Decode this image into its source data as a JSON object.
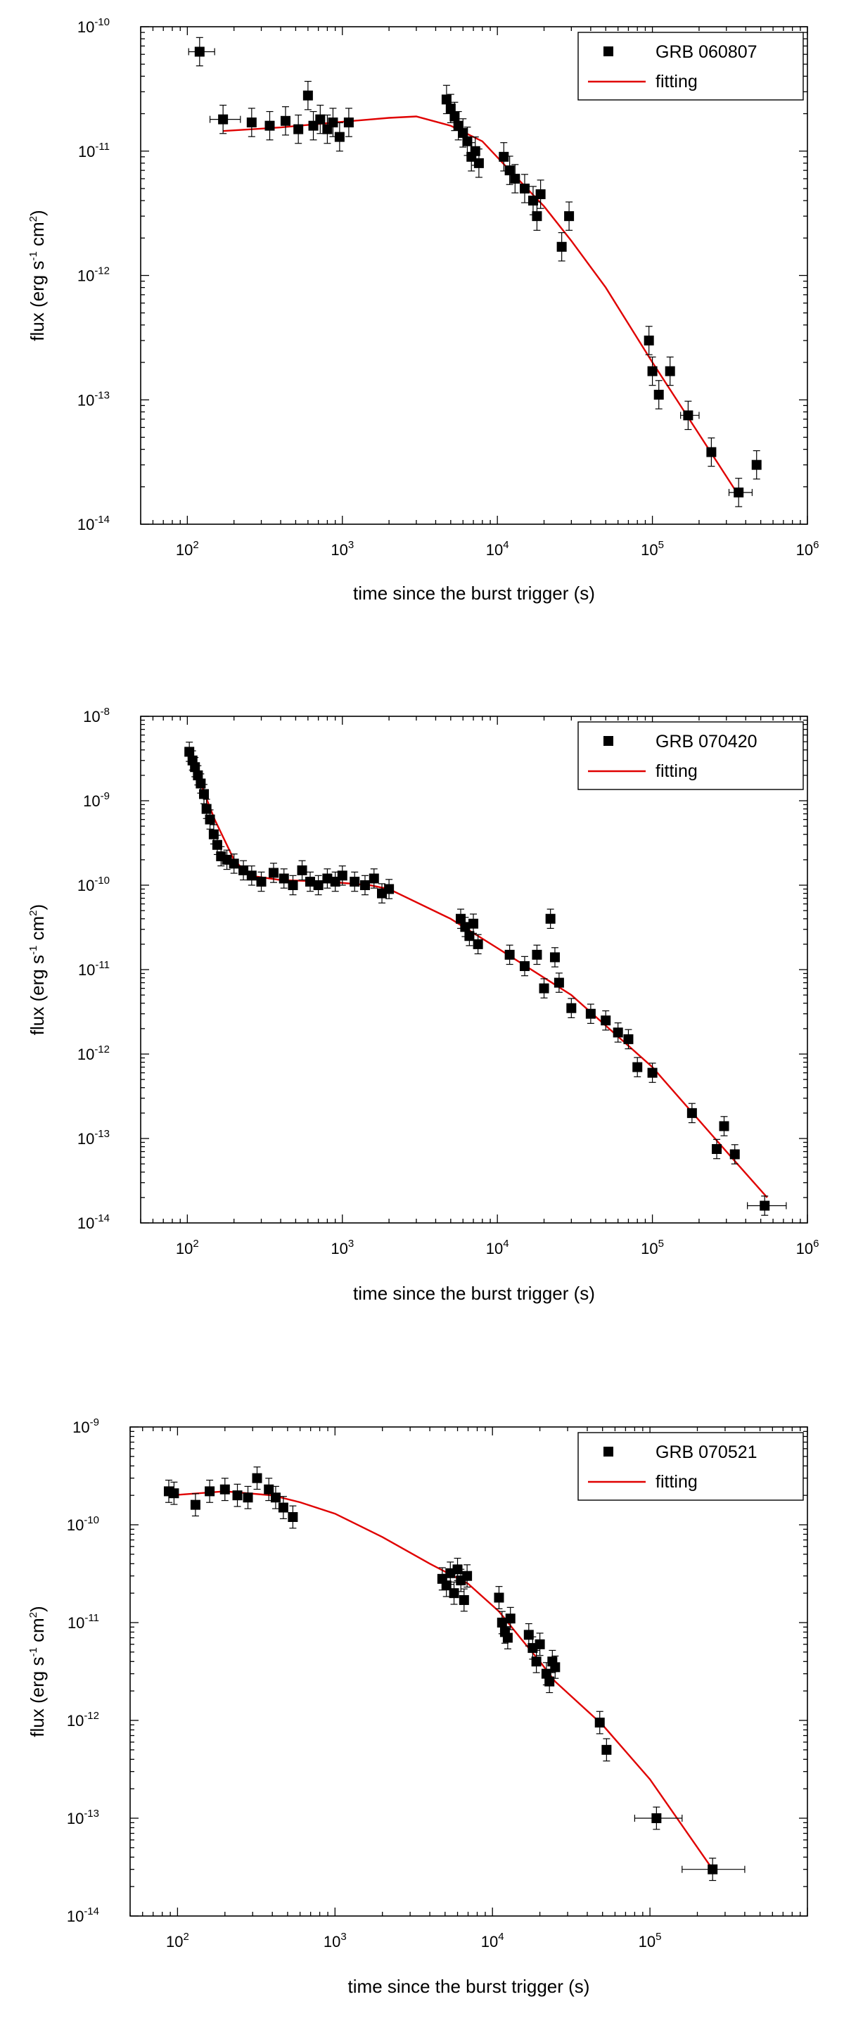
{
  "chart_data": [
    {
      "type": "scatter",
      "title": "",
      "xlabel": "time since the burst trigger (s)",
      "ylabel": "flux (erg s-1 cm2)",
      "ylabel_parts": [
        "flux (erg s",
        "-1",
        " cm",
        "2",
        ")"
      ],
      "x_scale": "log",
      "y_scale": "log",
      "xlim": [
        50,
        1000000
      ],
      "ylim_exp": [
        -14,
        -10
      ],
      "x_tick_exps": [
        2,
        3,
        4,
        5,
        6
      ],
      "y_tick_exps": [
        -14,
        -13,
        -12,
        -11,
        -10
      ],
      "legend_position": "top-right",
      "series": [
        {
          "name": "GRB 060807",
          "kind": "points",
          "points": [
            [
              120,
              6.3e-11
            ],
            [
              170,
              1.8e-11
            ],
            [
              260,
              1.7e-11
            ],
            [
              340,
              1.6e-11
            ],
            [
              430,
              1.75e-11
            ],
            [
              520,
              1.5e-11
            ],
            [
              600,
              2.8e-11
            ],
            [
              650,
              1.6e-11
            ],
            [
              720,
              1.8e-11
            ],
            [
              800,
              1.5e-11
            ],
            [
              870,
              1.7e-11
            ],
            [
              960,
              1.3e-11
            ],
            [
              1100,
              1.7e-11
            ],
            [
              4700,
              2.6e-11
            ],
            [
              5000,
              2.2e-11
            ],
            [
              5300,
              1.9e-11
            ],
            [
              5600,
              1.6e-11
            ],
            [
              6000,
              1.4e-11
            ],
            [
              6400,
              1.2e-11
            ],
            [
              6800,
              9e-12
            ],
            [
              7200,
              1e-11
            ],
            [
              7600,
              8e-12
            ],
            [
              11000,
              9e-12
            ],
            [
              12000,
              7e-12
            ],
            [
              13000,
              6e-12
            ],
            [
              15000,
              5e-12
            ],
            [
              17000,
              4e-12
            ],
            [
              18000,
              3e-12
            ],
            [
              19000,
              4.5e-12
            ],
            [
              26000,
              1.7e-12
            ],
            [
              29000,
              3e-12
            ],
            [
              95000,
              3e-13
            ],
            [
              100000,
              1.7e-13
            ],
            [
              110000,
              1.1e-13
            ],
            [
              130000,
              1.7e-13
            ],
            [
              170000,
              7.5e-14
            ],
            [
              240000,
              3.8e-14
            ],
            [
              360000,
              1.8e-14
            ],
            [
              470000,
              3e-14
            ]
          ],
          "xerr": [
            [
              120,
              30
            ],
            [
              170,
              50
            ],
            [
              170000,
              30000
            ],
            [
              360000,
              80000
            ]
          ]
        },
        {
          "name": "fitting",
          "kind": "line",
          "color": "#e00000",
          "points": [
            [
              170,
              1.45e-11
            ],
            [
              400,
              1.55e-11
            ],
            [
              1000,
              1.72e-11
            ],
            [
              2000,
              1.85e-11
            ],
            [
              3000,
              1.9e-11
            ],
            [
              5000,
              1.6e-11
            ],
            [
              8000,
              1.2e-11
            ],
            [
              12000,
              7e-12
            ],
            [
              20000,
              3.6e-12
            ],
            [
              30000,
              1.9e-12
            ],
            [
              50000,
              8e-13
            ],
            [
              100000,
              2e-13
            ],
            [
              200000,
              5.3e-14
            ],
            [
              350000,
              1.8e-14
            ]
          ]
        }
      ]
    },
    {
      "type": "scatter",
      "title": "",
      "xlabel": "time since the burst trigger (s)",
      "ylabel": "flux (erg s-1 cm2)",
      "ylabel_parts": [
        "flux (erg s",
        "-1",
        " cm",
        "2",
        ")"
      ],
      "x_scale": "log",
      "y_scale": "log",
      "xlim": [
        50,
        1000000
      ],
      "ylim_exp": [
        -14,
        -8
      ],
      "x_tick_exps": [
        2,
        3,
        4,
        5,
        6
      ],
      "y_tick_exps": [
        -14,
        -13,
        -12,
        -11,
        -10,
        -9,
        -8
      ],
      "legend_position": "top-right",
      "series": [
        {
          "name": "GRB 070420",
          "kind": "points",
          "points": [
            [
              103,
              3.8e-09
            ],
            [
              108,
              3e-09
            ],
            [
              112,
              2.5e-09
            ],
            [
              117,
              2e-09
            ],
            [
              122,
              1.6e-09
            ],
            [
              128,
              1.2e-09
            ],
            [
              133,
              8e-10
            ],
            [
              140,
              6e-10
            ],
            [
              148,
              4e-10
            ],
            [
              156,
              3e-10
            ],
            [
              165,
              2.2e-10
            ],
            [
              180,
              2e-10
            ],
            [
              200,
              1.8e-10
            ],
            [
              230,
              1.5e-10
            ],
            [
              260,
              1.3e-10
            ],
            [
              300,
              1.1e-10
            ],
            [
              360,
              1.4e-10
            ],
            [
              420,
              1.2e-10
            ],
            [
              480,
              1e-10
            ],
            [
              550,
              1.5e-10
            ],
            [
              620,
              1.1e-10
            ],
            [
              700,
              1e-10
            ],
            [
              800,
              1.2e-10
            ],
            [
              900,
              1.1e-10
            ],
            [
              1000,
              1.3e-10
            ],
            [
              1200,
              1.1e-10
            ],
            [
              1400,
              1e-10
            ],
            [
              1600,
              1.2e-10
            ],
            [
              1800,
              8e-11
            ],
            [
              2000,
              9e-11
            ],
            [
              5800,
              4e-11
            ],
            [
              6200,
              3.2e-11
            ],
            [
              6600,
              2.5e-11
            ],
            [
              7000,
              3.5e-11
            ],
            [
              7500,
              2e-11
            ],
            [
              12000,
              1.5e-11
            ],
            [
              15000,
              1.1e-11
            ],
            [
              18000,
              1.5e-11
            ],
            [
              20000,
              6e-12
            ],
            [
              22000,
              4e-11
            ],
            [
              23500,
              1.4e-11
            ],
            [
              25000,
              7e-12
            ],
            [
              30000,
              3.5e-12
            ],
            [
              40000,
              3e-12
            ],
            [
              50000,
              2.5e-12
            ],
            [
              60000,
              1.8e-12
            ],
            [
              70000,
              1.5e-12
            ],
            [
              80000,
              7e-13
            ],
            [
              100000,
              6e-13
            ],
            [
              180000,
              2e-13
            ],
            [
              260000,
              7.5e-14
            ],
            [
              290000,
              1.4e-13
            ],
            [
              340000,
              6.5e-14
            ],
            [
              530000,
              1.6e-14
            ]
          ],
          "xerr": [
            [
              530000,
              200000
            ]
          ]
        },
        {
          "name": "fitting",
          "kind": "line",
          "color": "#e00000",
          "points": [
            [
              100,
              4e-09
            ],
            [
              150,
              6e-10
            ],
            [
              200,
              2e-10
            ],
            [
              250,
              1.3e-10
            ],
            [
              400,
              1.15e-10
            ],
            [
              800,
              1.1e-10
            ],
            [
              1500,
              1e-10
            ],
            [
              2000,
              9e-11
            ],
            [
              5000,
              4e-11
            ],
            [
              10000,
              1.8e-11
            ],
            [
              30000,
              5e-12
            ],
            [
              100000,
              7e-13
            ],
            [
              300000,
              7e-14
            ],
            [
              550000,
              2e-14
            ]
          ]
        }
      ]
    },
    {
      "type": "scatter",
      "title": "",
      "xlabel": "time since the burst trigger (s)",
      "ylabel": "flux (erg s-1 cm2)",
      "ylabel_parts": [
        "flux (erg s",
        "-1",
        " cm",
        "2",
        ")"
      ],
      "x_scale": "log",
      "y_scale": "log",
      "xlim": [
        50,
        1000000
      ],
      "ylim_exp": [
        -14,
        -9
      ],
      "x_tick_exps": [
        2,
        3,
        4,
        5
      ],
      "y_tick_exps": [
        -14,
        -13,
        -12,
        -11,
        -10,
        -9
      ],
      "legend_position": "top-right",
      "series": [
        {
          "name": "GRB 070521",
          "kind": "points",
          "points": [
            [
              88,
              2.2e-10
            ],
            [
              95,
              2.1e-10
            ],
            [
              130,
              1.6e-10
            ],
            [
              160,
              2.2e-10
            ],
            [
              200,
              2.3e-10
            ],
            [
              240,
              2e-10
            ],
            [
              280,
              1.9e-10
            ],
            [
              320,
              3e-10
            ],
            [
              380,
              2.3e-10
            ],
            [
              420,
              1.9e-10
            ],
            [
              470,
              1.5e-10
            ],
            [
              540,
              1.2e-10
            ],
            [
              4800,
              2.8e-11
            ],
            [
              5100,
              2.4e-11
            ],
            [
              5400,
              3.2e-11
            ],
            [
              5700,
              2e-11
            ],
            [
              6000,
              3.5e-11
            ],
            [
              6300,
              2.7e-11
            ],
            [
              6600,
              1.7e-11
            ],
            [
              6900,
              3e-11
            ],
            [
              11000,
              1.8e-11
            ],
            [
              11500,
              1e-11
            ],
            [
              12000,
              8e-12
            ],
            [
              12500,
              7e-12
            ],
            [
              13000,
              1.1e-11
            ],
            [
              17000,
              7.5e-12
            ],
            [
              18000,
              5.5e-12
            ],
            [
              19000,
              4e-12
            ],
            [
              20000,
              6e-12
            ],
            [
              22000,
              3e-12
            ],
            [
              23000,
              2.5e-12
            ],
            [
              24000,
              4e-12
            ],
            [
              25000,
              3.5e-12
            ],
            [
              48000,
              9.5e-13
            ],
            [
              53000,
              5e-13
            ],
            [
              110000,
              1e-13
            ],
            [
              250000,
              3e-14
            ]
          ],
          "xerr": [
            [
              110000,
              50000
            ],
            [
              250000,
              150000
            ]
          ]
        },
        {
          "name": "fitting",
          "kind": "line",
          "color": "#e00000",
          "points": [
            [
              90,
              2e-10
            ],
            [
              200,
              2.2e-10
            ],
            [
              400,
              2e-10
            ],
            [
              600,
              1.7e-10
            ],
            [
              1000,
              1.3e-10
            ],
            [
              2000,
              7.5e-11
            ],
            [
              4000,
              4e-11
            ],
            [
              7000,
              2.5e-11
            ],
            [
              11000,
              1.3e-11
            ],
            [
              15000,
              7e-12
            ],
            [
              20000,
              4e-12
            ],
            [
              25000,
              2.5e-12
            ],
            [
              50000,
              9e-13
            ],
            [
              100000,
              2.5e-13
            ],
            [
              250000,
              3e-14
            ]
          ]
        }
      ]
    }
  ]
}
